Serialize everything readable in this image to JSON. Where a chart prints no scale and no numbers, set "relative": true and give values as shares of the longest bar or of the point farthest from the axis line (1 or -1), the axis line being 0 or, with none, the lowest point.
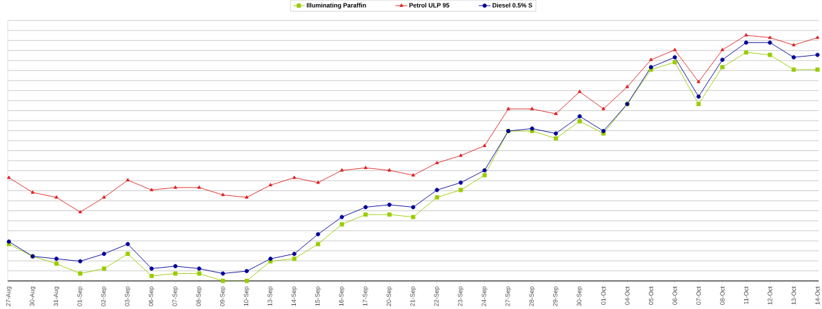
{
  "chart_data": {
    "type": "line",
    "relative": true,
    "grid": "y",
    "legend": "top",
    "line_style": "solid",
    "categories": [
      "27-Aug",
      "30-Aug",
      "31-Aug",
      "01-Sep",
      "02-Sep",
      "03-Sep",
      "06-Sep",
      "07-Sep",
      "08-Sep",
      "09-Sep",
      "10-Sep",
      "13-Sep",
      "14-Sep",
      "15-Sep",
      "16-Sep",
      "17-Sep",
      "20-Sep",
      "21-Sep",
      "22-Sep",
      "23-Sep",
      "24-Sep",
      "27-Sep",
      "28-Sep",
      "29-Sep",
      "30-Sep",
      "01-Oct",
      "04-Oct",
      "05-Oct",
      "06-Oct",
      "07-Oct",
      "08-Oct",
      "11-Oct",
      "12-Oct",
      "13-Oct",
      "14-Oct"
    ],
    "series": [
      {
        "name": "Illuminating Paraffin",
        "color": "#99cc00",
        "marker": "square",
        "values": [
          0.15,
          0.1,
          0.07,
          0.03,
          0.05,
          0.11,
          0.02,
          0.03,
          0.03,
          0,
          0,
          0.08,
          0.09,
          0.15,
          0.23,
          0.27,
          0.27,
          0.26,
          0.34,
          0.37,
          0.43,
          0.61,
          0.61,
          0.58,
          0.65,
          0.6,
          0.72,
          0.86,
          0.89,
          0.72,
          0.87,
          0.93,
          0.92,
          0.86,
          0.86
        ]
      },
      {
        "name": "Petrol ULP 95",
        "color": "#dd2222",
        "marker": "triangle",
        "values": [
          0.42,
          0.36,
          0.34,
          0.28,
          0.34,
          0.41,
          0.37,
          0.38,
          0.38,
          0.35,
          0.34,
          0.39,
          0.42,
          0.4,
          0.45,
          0.46,
          0.45,
          0.43,
          0.48,
          0.51,
          0.55,
          0.7,
          0.7,
          0.68,
          0.77,
          0.7,
          0.79,
          0.9,
          0.94,
          0.81,
          0.94,
          1,
          0.99,
          0.96,
          0.99
        ]
      },
      {
        "name": "Diesel 0.5% S",
        "color": "#000099",
        "marker": "circle",
        "values": [
          0.16,
          0.1,
          0.09,
          0.08,
          0.11,
          0.15,
          0.05,
          0.06,
          0.05,
          0.03,
          0.04,
          0.09,
          0.11,
          0.19,
          0.26,
          0.3,
          0.31,
          0.3,
          0.37,
          0.4,
          0.45,
          0.61,
          0.62,
          0.6,
          0.67,
          0.61,
          0.72,
          0.87,
          0.91,
          0.75,
          0.9,
          0.97,
          0.97,
          0.91,
          0.92
        ]
      }
    ]
  }
}
